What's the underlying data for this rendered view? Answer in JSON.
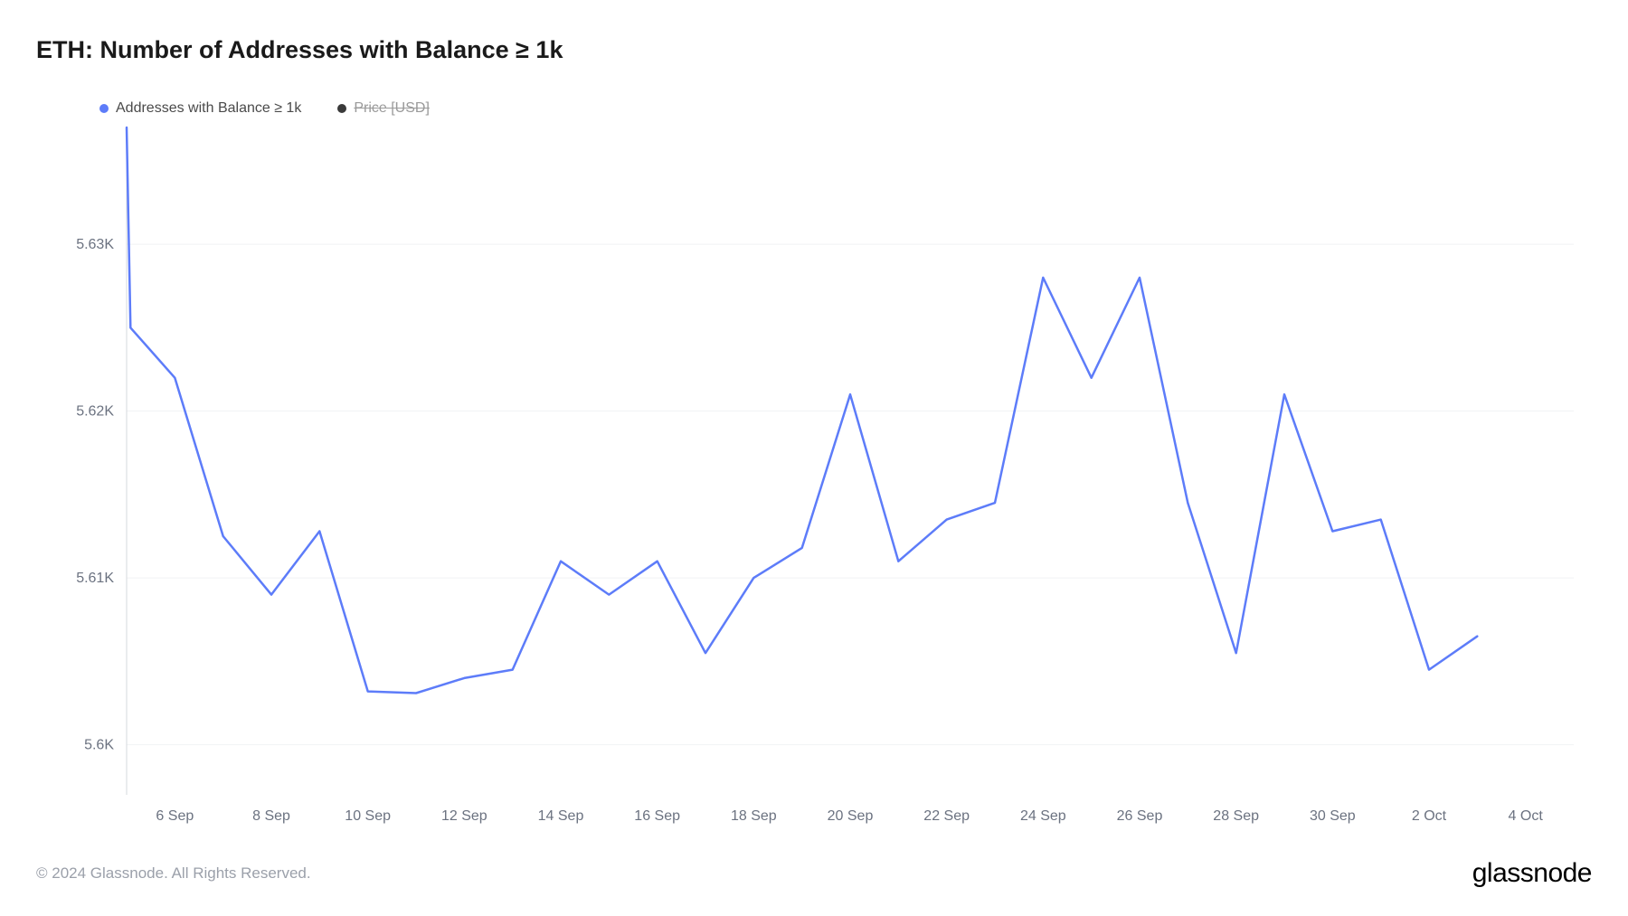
{
  "title": "ETH: Number of Addresses with Balance ≥ 1k",
  "legend": {
    "series1": {
      "label": "Addresses with Balance ≥ 1k",
      "color": "#5d7cf9",
      "enabled": true
    },
    "series2": {
      "label": "Price [USD]",
      "color": "#3a3a3a",
      "enabled": false
    }
  },
  "chart": {
    "type": "line",
    "background_color": "#ffffff",
    "grid_color": "#f1f2f4",
    "axis_line_color": "#d6d9de",
    "line_color": "#5d7cf9",
    "line_width": 2.5,
    "ylim": [
      5.597,
      5.637
    ],
    "yticks": [
      {
        "v": 5.6,
        "label": "5.6K"
      },
      {
        "v": 5.61,
        "label": "5.61K"
      },
      {
        "v": 5.62,
        "label": "5.62K"
      },
      {
        "v": 5.63,
        "label": "5.63K"
      }
    ],
    "xlim": [
      0,
      30
    ],
    "xticks": [
      {
        "v": 1,
        "label": "6 Sep"
      },
      {
        "v": 3,
        "label": "8 Sep"
      },
      {
        "v": 5,
        "label": "10 Sep"
      },
      {
        "v": 7,
        "label": "12 Sep"
      },
      {
        "v": 9,
        "label": "14 Sep"
      },
      {
        "v": 11,
        "label": "16 Sep"
      },
      {
        "v": 13,
        "label": "18 Sep"
      },
      {
        "v": 15,
        "label": "20 Sep"
      },
      {
        "v": 17,
        "label": "22 Sep"
      },
      {
        "v": 19,
        "label": "24 Sep"
      },
      {
        "v": 21,
        "label": "26 Sep"
      },
      {
        "v": 23,
        "label": "28 Sep"
      },
      {
        "v": 25,
        "label": "30 Sep"
      },
      {
        "v": 27,
        "label": "2 Oct"
      },
      {
        "v": 29,
        "label": "4 Oct"
      }
    ],
    "data": [
      {
        "x": 0,
        "y": 5.637
      },
      {
        "x": 0.08,
        "y": 5.625
      },
      {
        "x": 1,
        "y": 5.622
      },
      {
        "x": 2,
        "y": 5.6125
      },
      {
        "x": 3,
        "y": 5.609
      },
      {
        "x": 4,
        "y": 5.6128
      },
      {
        "x": 5,
        "y": 5.6032
      },
      {
        "x": 6,
        "y": 5.6031
      },
      {
        "x": 7,
        "y": 5.604
      },
      {
        "x": 8,
        "y": 5.6045
      },
      {
        "x": 9,
        "y": 5.611
      },
      {
        "x": 10,
        "y": 5.609
      },
      {
        "x": 11,
        "y": 5.611
      },
      {
        "x": 12,
        "y": 5.6055
      },
      {
        "x": 13,
        "y": 5.61
      },
      {
        "x": 14,
        "y": 5.6118
      },
      {
        "x": 15,
        "y": 5.621
      },
      {
        "x": 16,
        "y": 5.611
      },
      {
        "x": 17,
        "y": 5.6135
      },
      {
        "x": 18,
        "y": 5.6145
      },
      {
        "x": 19,
        "y": 5.628
      },
      {
        "x": 20,
        "y": 5.622
      },
      {
        "x": 21,
        "y": 5.628
      },
      {
        "x": 22,
        "y": 5.6145
      },
      {
        "x": 23,
        "y": 5.6055
      },
      {
        "x": 24,
        "y": 5.621
      },
      {
        "x": 25,
        "y": 5.6128
      },
      {
        "x": 26,
        "y": 5.6135
      },
      {
        "x": 27,
        "y": 5.6045
      },
      {
        "x": 28,
        "y": 5.6065
      }
    ],
    "tick_fontsize": 16,
    "tick_color": "#6b7280"
  },
  "footer": {
    "copyright": "© 2024 Glassnode. All Rights Reserved.",
    "brand": "glassnode"
  }
}
